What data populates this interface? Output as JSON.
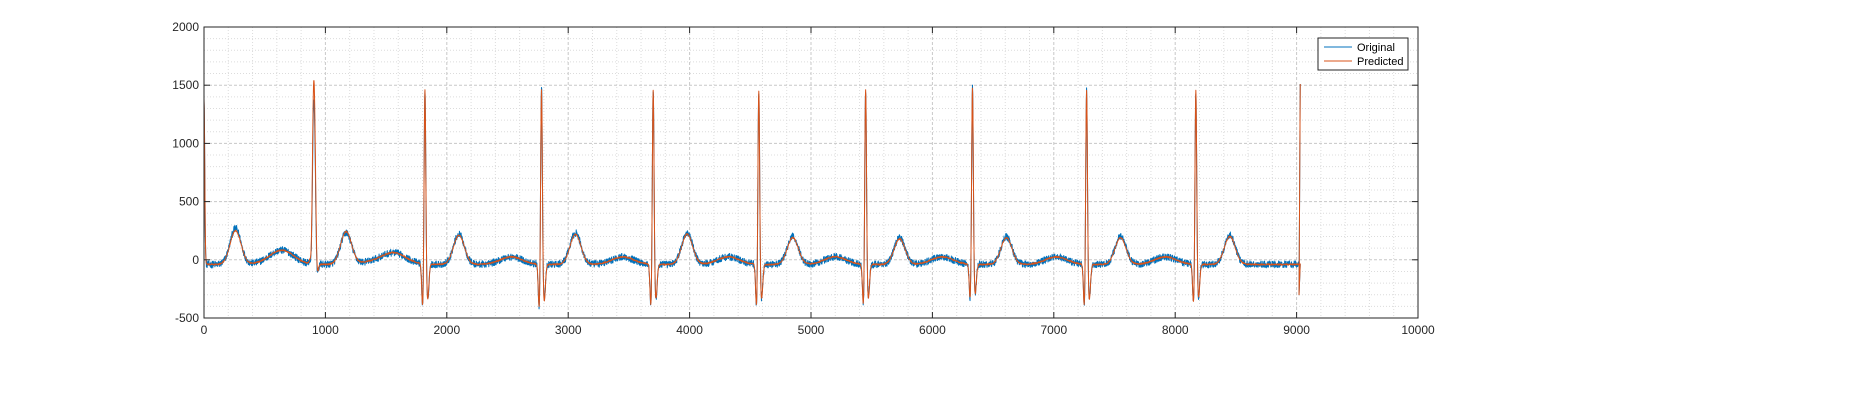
{
  "chart_data": {
    "type": "line",
    "title": "",
    "xlabel": "",
    "ylabel": "",
    "xlim": [
      0,
      10000
    ],
    "ylim": [
      -500,
      2000
    ],
    "x_ticks": [
      0,
      1000,
      2000,
      3000,
      4000,
      5000,
      6000,
      7000,
      8000,
      9000,
      10000
    ],
    "y_ticks": [
      -500,
      0,
      500,
      1000,
      1500,
      2000
    ],
    "x_tick_labels": [
      "0",
      "1000",
      "2000",
      "3000",
      "4000",
      "5000",
      "6000",
      "7000",
      "8000",
      "9000",
      "10000"
    ],
    "y_tick_labels": [
      "-500",
      "0",
      "500",
      "1000",
      "1500",
      "2000"
    ],
    "grid": "major and minor, dotted",
    "legend_position": "top-right",
    "x_end": 9030,
    "baseline_offset": -40,
    "series": [
      {
        "name": "Original",
        "color": "#0072BD",
        "noise_amplitude": 30,
        "r_peaks": [
          {
            "x": 905,
            "y": 1420,
            "s": -370,
            "t": 0
          },
          {
            "x": 1820,
            "y": 1510,
            "s": -390,
            "t": 260
          },
          {
            "x": 2780,
            "y": 1560,
            "s": -400,
            "t": 270
          },
          {
            "x": 3700,
            "y": 1510,
            "s": -380,
            "t": 270
          },
          {
            "x": 4570,
            "y": 1510,
            "s": -380,
            "t": 240
          },
          {
            "x": 5450,
            "y": 1520,
            "s": -370,
            "t": 230
          },
          {
            "x": 6330,
            "y": 1520,
            "s": -320,
            "t": 240
          },
          {
            "x": 7270,
            "y": 1510,
            "s": -380,
            "t": 240
          },
          {
            "x": 8170,
            "y": 1500,
            "s": -360,
            "t": 250
          }
        ],
        "t_waves": [
          {
            "x": 260,
            "y": 270
          },
          {
            "x": 1170,
            "y": 230
          }
        ]
      },
      {
        "name": "Predicted",
        "color": "#D95319",
        "noise_amplitude": 6,
        "r_peaks": [
          {
            "x": 905,
            "y": 1600,
            "s": -370,
            "t": 0
          },
          {
            "x": 1820,
            "y": 1510,
            "s": -390,
            "t": 250
          },
          {
            "x": 2780,
            "y": 1520,
            "s": -400,
            "t": 260
          },
          {
            "x": 3700,
            "y": 1510,
            "s": -380,
            "t": 260
          },
          {
            "x": 4570,
            "y": 1510,
            "s": -380,
            "t": 230
          },
          {
            "x": 5450,
            "y": 1520,
            "s": -370,
            "t": 220
          },
          {
            "x": 6330,
            "y": 1520,
            "s": -320,
            "t": 230
          },
          {
            "x": 7270,
            "y": 1510,
            "s": -380,
            "t": 230
          },
          {
            "x": 8170,
            "y": 1510,
            "s": -360,
            "t": 240
          }
        ],
        "t_waves": [
          {
            "x": 260,
            "y": 250
          },
          {
            "x": 1170,
            "y": 240
          }
        ]
      }
    ]
  }
}
